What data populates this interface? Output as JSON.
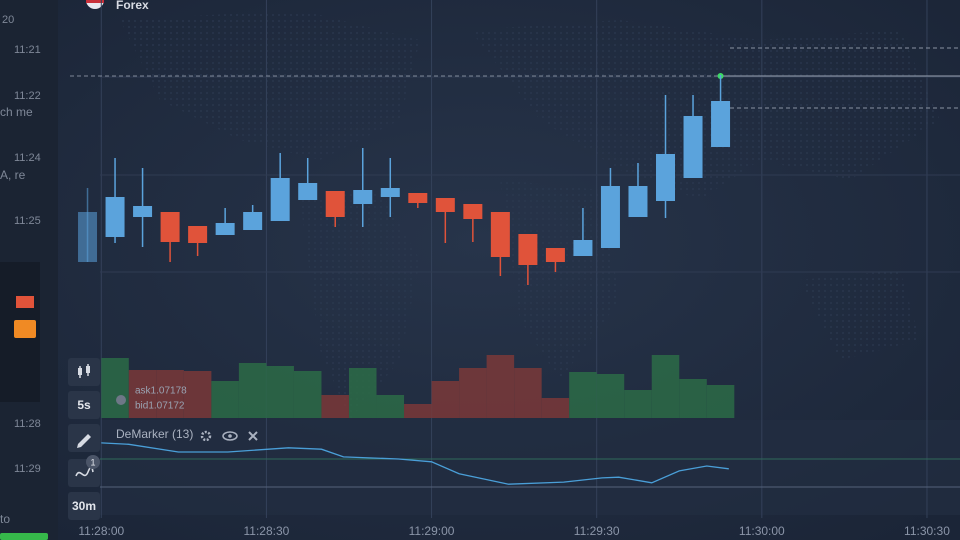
{
  "header": {
    "asset": "Forex"
  },
  "sidebar": {
    "top": "20",
    "messages": [
      {
        "time": "11:21"
      },
      {
        "time": "11:22",
        "text": "ch me"
      },
      {
        "time": "11:24",
        "text": "A, re"
      },
      {
        "time": "11:25"
      },
      {
        "time": "11:28"
      },
      {
        "time": "11:29"
      }
    ],
    "footer": "to"
  },
  "toolbar": {
    "timeframe": "5s",
    "period": "30m",
    "indicator_count": 1
  },
  "chart_data": [
    {
      "type": "candlestick",
      "x": [
        -2.5,
        2.5,
        7.5,
        12.5,
        17.5,
        22.5,
        27.5,
        32.5,
        37.5,
        42.5,
        47.5,
        52.5,
        57.5,
        62.5,
        67.5,
        72.5,
        77.5,
        82.5,
        87.5,
        92.5,
        97.5,
        102.5,
        107.5,
        112.5
      ],
      "open": [
        1.071516,
        1.071566,
        1.071606,
        1.071616,
        1.071588,
        1.07157,
        1.07158,
        1.071598,
        1.07164,
        1.071658,
        1.071632,
        1.071646,
        1.071654,
        1.071644,
        1.071632,
        1.071616,
        1.071572,
        1.071544,
        1.071528,
        1.071544,
        1.071606,
        1.071638,
        1.071684,
        1.071746
      ],
      "high": [
        1.071664,
        1.071724,
        1.071704,
        1.071616,
        1.071588,
        1.071624,
        1.07163,
        1.071734,
        1.071724,
        1.071658,
        1.071744,
        1.071724,
        1.071654,
        1.071644,
        1.071632,
        1.071616,
        1.071572,
        1.071544,
        1.071624,
        1.071704,
        1.071714,
        1.07185,
        1.07185,
        1.07189
      ],
      "low": [
        1.071516,
        1.071554,
        1.071546,
        1.071516,
        1.071528,
        1.07157,
        1.07158,
        1.071598,
        1.07164,
        1.071586,
        1.071586,
        1.071606,
        1.071624,
        1.071554,
        1.071556,
        1.071488,
        1.07147,
        1.071496,
        1.071528,
        1.071544,
        1.071606,
        1.071604,
        1.071684,
        1.071746
      ],
      "close": [
        1.071616,
        1.071646,
        1.071628,
        1.071556,
        1.071554,
        1.071594,
        1.071616,
        1.071684,
        1.071674,
        1.071606,
        1.07166,
        1.071664,
        1.071634,
        1.071616,
        1.071602,
        1.071526,
        1.07151,
        1.071516,
        1.07156,
        1.071668,
        1.071668,
        1.071732,
        1.071808,
        1.071838
      ],
      "up_color": "#5ba3dc",
      "down_color": "#e0533a",
      "xlim": [
        -7.5,
        156
      ],
      "xticks": [
        {
          "value": 0,
          "label": "11:28:00"
        },
        {
          "value": 30,
          "label": "11:28:30"
        },
        {
          "value": 60,
          "label": "11:29:00"
        },
        {
          "value": 90,
          "label": "11:29:30"
        },
        {
          "value": 120,
          "label": "11:30:00"
        },
        {
          "value": 150,
          "label": "11:30:30"
        }
      ],
      "ylim": [
        1.0713,
        1.0719
      ],
      "current_price": 1.071888,
      "strike_lines": [
        1.071944,
        1.071824
      ],
      "grid": true
    },
    {
      "type": "bar",
      "x": [
        2.5,
        7.5,
        12.5,
        17.5,
        22.5,
        27.5,
        32.5,
        37.5,
        42.5,
        47.5,
        52.5,
        57.5,
        62.5,
        67.5,
        72.5,
        77.5,
        82.5,
        87.5,
        92.5,
        97.5,
        102.5,
        107.5,
        112.5
      ],
      "values": [
        60,
        48,
        48,
        47,
        37,
        55,
        52,
        47,
        23,
        50,
        23,
        14,
        37,
        50,
        63,
        50,
        20,
        46,
        44,
        28,
        63,
        39,
        33
      ],
      "colors": [
        "#2b6b47",
        "#7a3838",
        "#7a3838",
        "#7a3838",
        "#2b6b47",
        "#2b6b47",
        "#2b6b47",
        "#2b6b47",
        "#7a3838",
        "#2b6b47",
        "#2b6b47",
        "#7a3838",
        "#7a3838",
        "#7a3838",
        "#7a3838",
        "#7a3838",
        "#7a3838",
        "#2b6b47",
        "#2b6b47",
        "#2b6b47",
        "#2b6b47",
        "#2b6b47",
        "#2b6b47"
      ],
      "ylim": [
        0,
        70
      ],
      "ask": "ask1.07178",
      "bid": "bid1.07172"
    },
    {
      "type": "line",
      "name": "DeMarker (13)",
      "x": [
        0,
        5,
        14,
        23,
        34,
        40,
        44,
        54,
        60,
        65,
        74,
        84,
        91,
        94,
        100,
        105,
        110,
        114
      ],
      "values": [
        0.93,
        0.91,
        0.8,
        0.8,
        0.86,
        0.84,
        0.73,
        0.7,
        0.66,
        0.49,
        0.34,
        0.37,
        0.43,
        0.44,
        0.36,
        0.53,
        0.6,
        0.56
      ],
      "color": "#4a9fd8",
      "ylim": [
        0,
        1
      ],
      "levels": [
        0.3,
        0.7
      ]
    }
  ]
}
